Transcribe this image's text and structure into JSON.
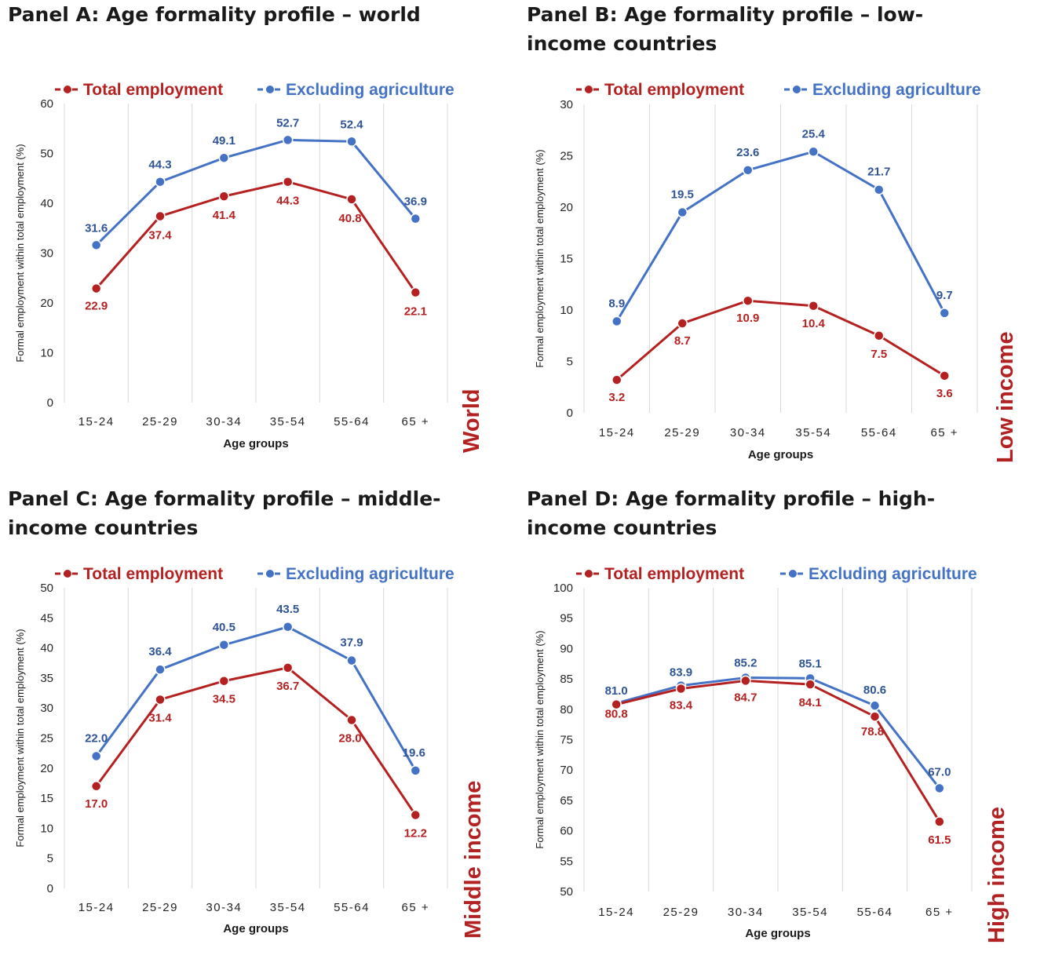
{
  "colors": {
    "total": "#b52121",
    "excl": "#4472c4",
    "excl_label": "#2f5597",
    "grid": "#d9d9d9"
  },
  "legend": {
    "total": "Total employment",
    "excl": "Excluding agriculture"
  },
  "panels": [
    {
      "title": "Panel A: Age formality profile – world",
      "side_label": "World"
    },
    {
      "title": "Panel B: Age formality profile – low-income countries",
      "side_label": "Low income"
    },
    {
      "title": "Panel C: Age formality profile – middle-income countries",
      "side_label": "Middle income"
    },
    {
      "title": "Panel D: Age formality profile – high-income countries",
      "side_label": "High income"
    }
  ],
  "chart_data": [
    {
      "type": "line",
      "title": "Panel A: Age formality profile – world",
      "categories": [
        "15-24",
        "25-29",
        "30-34",
        "35-54",
        "55-64",
        "65 +"
      ],
      "xlabel": "Age groups",
      "ylabel": "Formal employment within total employment (%)",
      "ylim": [
        0,
        60
      ],
      "yticks": [
        0,
        10,
        20,
        30,
        40,
        50,
        60
      ],
      "legend": "top",
      "grid": "vertical",
      "series": [
        {
          "name": "Total employment",
          "values": [
            22.9,
            37.4,
            41.4,
            44.3,
            40.8,
            22.1
          ]
        },
        {
          "name": "Excluding agriculture",
          "values": [
            31.6,
            44.3,
            49.1,
            52.7,
            52.4,
            36.9
          ]
        }
      ]
    },
    {
      "type": "line",
      "title": "Panel B: Age formality profile – low-income countries",
      "categories": [
        "15-24",
        "25-29",
        "30-34",
        "35-54",
        "55-64",
        "65 +"
      ],
      "xlabel": "Age groups",
      "ylabel": "Formal employment within total employment (%)",
      "ylim": [
        0,
        30
      ],
      "yticks": [
        0,
        5,
        10,
        15,
        20,
        25,
        30
      ],
      "legend": "top",
      "grid": "vertical",
      "series": [
        {
          "name": "Total employment",
          "values": [
            3.2,
            8.7,
            10.9,
            10.4,
            7.5,
            3.6
          ]
        },
        {
          "name": "Excluding agriculture",
          "values": [
            8.9,
            19.5,
            23.6,
            25.4,
            21.7,
            9.7
          ]
        }
      ]
    },
    {
      "type": "line",
      "title": "Panel C: Age formality profile – middle-income countries",
      "categories": [
        "15-24",
        "25-29",
        "30-34",
        "35-54",
        "55-64",
        "65 +"
      ],
      "xlabel": "Age groups",
      "ylabel": "Formal employment within total employment (%)",
      "ylim": [
        0,
        50
      ],
      "yticks": [
        0,
        5,
        10,
        15,
        20,
        25,
        30,
        35,
        40,
        45,
        50
      ],
      "legend": "top",
      "grid": "vertical",
      "series": [
        {
          "name": "Total employment",
          "values": [
            17.0,
            31.4,
            34.5,
            36.7,
            28.0,
            12.2
          ]
        },
        {
          "name": "Excluding agriculture",
          "values": [
            22.0,
            36.4,
            40.5,
            43.5,
            37.9,
            19.6
          ]
        }
      ]
    },
    {
      "type": "line",
      "title": "Panel D: Age formality profile – high-income countries",
      "categories": [
        "15-24",
        "25-29",
        "30-34",
        "35-54",
        "55-64",
        "65 +"
      ],
      "xlabel": "Age groups",
      "ylabel": "Formal employment within total employment (%)",
      "ylim": [
        50,
        100
      ],
      "yticks": [
        50,
        55,
        60,
        65,
        70,
        75,
        80,
        85,
        90,
        95,
        100
      ],
      "legend": "top",
      "grid": "vertical",
      "series": [
        {
          "name": "Total employment",
          "values": [
            80.8,
            83.4,
            84.7,
            84.1,
            78.8,
            61.5
          ]
        },
        {
          "name": "Excluding agriculture",
          "values": [
            81.0,
            83.9,
            85.2,
            85.1,
            80.6,
            67.0
          ]
        }
      ]
    }
  ]
}
